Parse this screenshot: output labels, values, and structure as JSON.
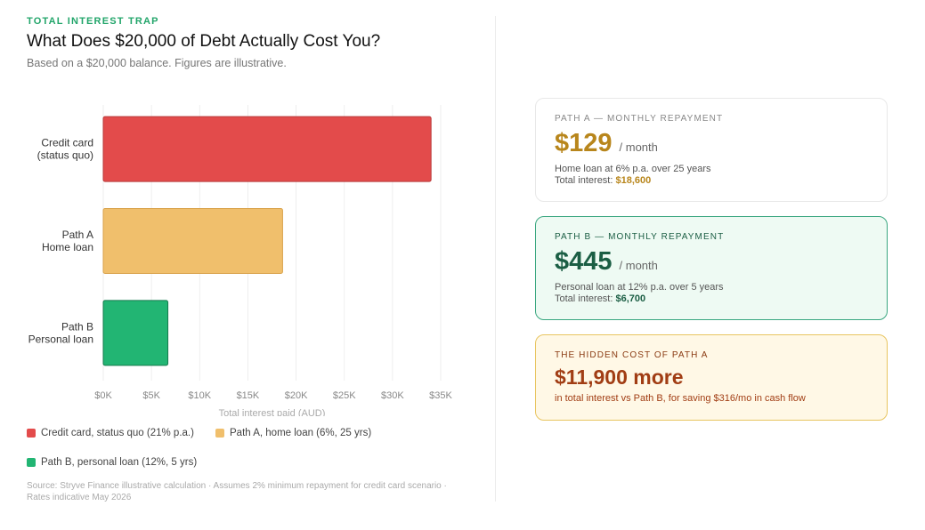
{
  "header": {
    "eyebrow": "TOTAL INTEREST TRAP",
    "title": "What Does $20,000 of Debt Actually Cost You?",
    "subtitle": "Based on a $20,000 balance. Figures are illustrative."
  },
  "chart_data": {
    "type": "bar",
    "orientation": "horizontal",
    "categories": [
      [
        "Credit card",
        "(status quo)"
      ],
      [
        "Path A",
        "Home loan"
      ],
      [
        "Path B",
        "Personal loan"
      ]
    ],
    "values": [
      34000,
      18600,
      6700
    ],
    "colors": [
      "#e34b4b",
      "#f0bf6c",
      "#22b573"
    ],
    "xlabel": "Total interest paid (AUD)",
    "xlim": [
      0,
      35000
    ],
    "xticks": [
      0,
      5000,
      10000,
      15000,
      20000,
      25000,
      30000,
      35000
    ],
    "xtick_labels": [
      "$0K",
      "$5K",
      "$10K",
      "$15K",
      "$20K",
      "$25K",
      "$30K",
      "$35K"
    ],
    "grid": "vertical",
    "legend": [
      {
        "label": "Credit card, status quo (21% p.a.)",
        "color": "#e34b4b"
      },
      {
        "label": "Path A, home loan (6%, 25 yrs)",
        "color": "#f0bf6c"
      },
      {
        "label": "Path B, personal loan (12%, 5 yrs)",
        "color": "#22b573"
      }
    ],
    "legend_placement": "bottom"
  },
  "source": "Source: Stryve Finance illustrative calculation · Assumes 2% minimum repayment for credit card scenario · Rates indicative May 2026",
  "cards": {
    "a": {
      "label": "PATH A — MONTHLY REPAYMENT",
      "amount": "$129",
      "per": "/ month",
      "desc": "Home loan at 6% p.a. over 25 years",
      "interest_label": "Total interest: ",
      "interest_value": "$18,600"
    },
    "b": {
      "label": "PATH B — MONTHLY REPAYMENT",
      "amount": "$445",
      "per": "/ month",
      "desc": "Personal loan at 12% p.a. over 5 years",
      "interest_label": "Total interest: ",
      "interest_value": "$6,700"
    },
    "c": {
      "label": "THE HIDDEN COST OF PATH A",
      "amount": "$11,900 more",
      "note": "in total interest vs Path B, for saving $316/mo in cash flow"
    }
  }
}
